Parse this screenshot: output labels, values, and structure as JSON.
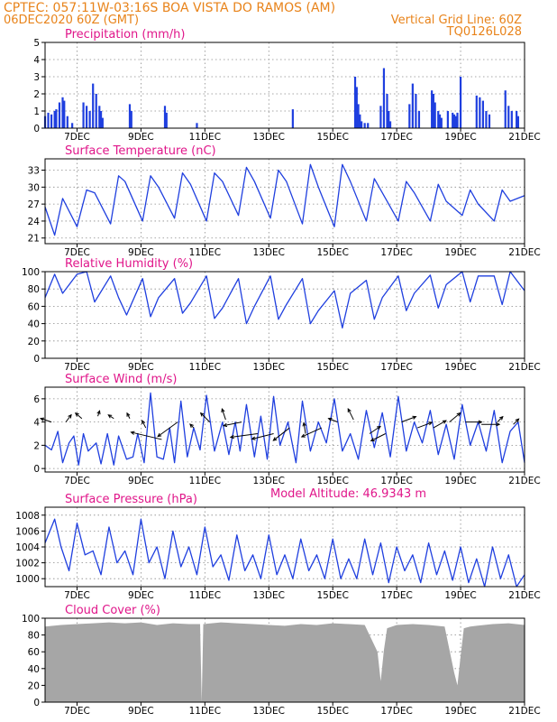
{
  "header": {
    "line1_left": "CPTEC:  057:11W-03:16S  BOA VISTA DO RAMOS (AM)",
    "line2_left": "06DEC2020 60Z (GMT)",
    "line2_right": "Vertical Grid Line: 60Z",
    "line3_right": "TQ0126L028"
  },
  "colors": {
    "header": "#e8831a",
    "titles": "#e0168a",
    "series": "#1f3fdf",
    "cloud": "#a6a6a6",
    "grid": "#8a8a8a"
  },
  "x_labels": [
    "7DEC",
    "9DEC",
    "11DEC",
    "13DEC",
    "15DEC",
    "17DEC",
    "19DEC",
    "21DEC"
  ],
  "altitude_label": "Model Altitude: 46.9343 m",
  "chart_data": [
    {
      "type": "bar",
      "title": "Precipitation (mm/h)",
      "ylim": [
        0,
        5
      ],
      "yticks": [
        "0",
        "1",
        "2",
        "3",
        "4",
        "5"
      ],
      "x_days": [
        6.0,
        6.1,
        6.2,
        6.3,
        6.35,
        6.45,
        6.55,
        6.6,
        6.7,
        6.85,
        7.2,
        7.3,
        7.4,
        7.5,
        7.6,
        7.7,
        7.75,
        7.8,
        8.65,
        8.7,
        9.75,
        9.8,
        10.75,
        13.75,
        15.7,
        15.75,
        15.8,
        15.85,
        15.9,
        16.0,
        16.1,
        16.5,
        16.6,
        16.7,
        16.75,
        16.8,
        17.4,
        17.5,
        17.6,
        17.7,
        18.1,
        18.15,
        18.2,
        18.3,
        18.35,
        18.4,
        18.6,
        18.75,
        18.8,
        18.85,
        18.9,
        19.0,
        19.5,
        19.6,
        19.7,
        19.8,
        19.9,
        20.4,
        20.5,
        20.6,
        20.75,
        20.8
      ],
      "values": [
        0.7,
        0.9,
        0.8,
        1.0,
        1.1,
        1.5,
        1.8,
        1.6,
        0.7,
        0.3,
        1.5,
        1.3,
        1.0,
        2.6,
        2.0,
        1.3,
        1.0,
        0.6,
        1.4,
        1.0,
        1.3,
        0.9,
        0.3,
        1.1,
        3.0,
        2.4,
        1.4,
        0.8,
        0.4,
        0.3,
        0.3,
        1.3,
        3.5,
        2.0,
        1.0,
        0.4,
        1.4,
        2.6,
        2.0,
        1.0,
        2.2,
        2.0,
        1.5,
        1.0,
        0.8,
        0.6,
        1.0,
        0.9,
        0.8,
        0.7,
        0.9,
        3.0,
        1.9,
        1.8,
        1.6,
        1.0,
        0.8,
        2.2,
        1.3,
        1.0,
        1.0,
        0.7
      ]
    },
    {
      "type": "line",
      "title": "Surface Temperature (nC)",
      "ylim": [
        20,
        35
      ],
      "yticks": [
        "21",
        "24",
        "27",
        "30",
        "33"
      ],
      "x_days": [
        6.0,
        6.3,
        6.55,
        7.0,
        7.3,
        7.55,
        8.05,
        8.3,
        8.5,
        9.05,
        9.3,
        9.55,
        10.05,
        10.3,
        10.55,
        11.05,
        11.3,
        11.55,
        12.05,
        12.3,
        12.55,
        13.05,
        13.3,
        13.55,
        14.05,
        14.3,
        14.55,
        15.05,
        15.3,
        15.55,
        16.05,
        16.3,
        16.55,
        17.05,
        17.3,
        17.55,
        18.05,
        18.3,
        18.55,
        19.05,
        19.3,
        19.55,
        20.05,
        20.3,
        20.55,
        21.0
      ],
      "values": [
        26.5,
        21.5,
        28.0,
        23.0,
        29.5,
        29.0,
        23.5,
        32.0,
        31.0,
        24.0,
        32.0,
        30.0,
        24.5,
        32.5,
        30.5,
        24.0,
        32.5,
        31.0,
        25.0,
        33.5,
        31.0,
        24.5,
        33.0,
        31.0,
        23.5,
        34.0,
        30.0,
        23.0,
        34.0,
        31.0,
        24.0,
        31.5,
        29.0,
        24.0,
        31.0,
        29.0,
        24.0,
        30.5,
        27.5,
        25.0,
        29.5,
        27.0,
        24.0,
        29.5,
        27.5,
        28.5
      ]
    },
    {
      "type": "line",
      "title": "Relative Humidity (%)",
      "ylim": [
        0,
        100
      ],
      "yticks": [
        "0",
        "20",
        "40",
        "60",
        "80",
        "100"
      ],
      "x_days": [
        6.0,
        6.3,
        6.55,
        7.0,
        7.3,
        7.55,
        8.05,
        8.3,
        8.55,
        9.05,
        9.3,
        9.55,
        10.05,
        10.3,
        10.55,
        11.05,
        11.3,
        11.55,
        12.05,
        12.3,
        12.55,
        13.05,
        13.3,
        13.55,
        14.05,
        14.3,
        14.55,
        15.05,
        15.3,
        15.55,
        16.05,
        16.3,
        16.55,
        17.05,
        17.3,
        17.55,
        18.05,
        18.3,
        18.55,
        19.05,
        19.3,
        19.55,
        20.05,
        20.3,
        20.55,
        21.0
      ],
      "values": [
        70,
        97,
        75,
        97,
        100,
        65,
        95,
        70,
        50,
        92,
        48,
        70,
        92,
        52,
        64,
        95,
        46,
        58,
        92,
        40,
        60,
        95,
        45,
        62,
        92,
        40,
        55,
        78,
        35,
        75,
        90,
        45,
        70,
        95,
        55,
        75,
        96,
        58,
        85,
        100,
        65,
        95,
        95,
        62,
        100,
        78
      ]
    },
    {
      "type": "line",
      "title": "Surface Wind (m/s)",
      "ylim": [
        -0.3,
        7
      ],
      "yticks": [
        "0",
        "2",
        "4",
        "6"
      ],
      "x_days": [
        6.0,
        6.2,
        6.4,
        6.55,
        6.75,
        6.9,
        7.05,
        7.2,
        7.35,
        7.6,
        7.75,
        7.95,
        8.15,
        8.3,
        8.55,
        8.75,
        8.9,
        9.1,
        9.3,
        9.5,
        9.7,
        9.9,
        10.05,
        10.25,
        10.45,
        10.65,
        10.85,
        11.05,
        11.3,
        11.55,
        11.75,
        11.95,
        12.1,
        12.3,
        12.55,
        12.75,
        12.95,
        13.15,
        13.35,
        13.6,
        13.85,
        14.05,
        14.3,
        14.55,
        14.8,
        15.05,
        15.3,
        15.55,
        15.8,
        16.05,
        16.3,
        16.55,
        16.8,
        17.05,
        17.3,
        17.55,
        17.8,
        18.05,
        18.3,
        18.55,
        18.8,
        19.05,
        19.3,
        19.55,
        19.8,
        20.05,
        20.3,
        20.55,
        20.8,
        21.0
      ],
      "values": [
        2.0,
        1.6,
        3.2,
        0.5,
        2.2,
        2.8,
        0.3,
        3.0,
        1.5,
        2.2,
        0.4,
        3.0,
        0.3,
        2.8,
        0.8,
        1.0,
        3.0,
        0.5,
        6.5,
        1.0,
        0.8,
        3.5,
        0.5,
        5.8,
        1.0,
        3.5,
        1.6,
        6.3,
        1.5,
        4.0,
        1.2,
        4.0,
        1.5,
        5.5,
        1.0,
        4.5,
        0.8,
        6.2,
        2.0,
        4.0,
        0.5,
        5.8,
        1.5,
        4.0,
        2.2,
        6.0,
        1.5,
        3.0,
        0.8,
        5.0,
        1.8,
        4.8,
        1.0,
        6.2,
        1.5,
        4.0,
        2.2,
        5.0,
        1.2,
        3.8,
        0.8,
        5.5,
        2.0,
        4.0,
        1.5,
        5.0,
        0.5,
        3.2,
        4.0,
        0.5
      ],
      "arrows": {
        "x_days": [
          6.2,
          6.65,
          7.15,
          7.65,
          8.15,
          8.65,
          9.15,
          9.65,
          10.15,
          10.65,
          11.15,
          11.65,
          12.15,
          12.65,
          13.15,
          13.65,
          14.15,
          14.65,
          15.15,
          15.65,
          16.15,
          16.65,
          17.15,
          17.65,
          18.15,
          18.65,
          19.15,
          19.65,
          20.15,
          20.65
        ],
        "y": [
          4.0,
          4.0,
          4.3,
          4.5,
          4.3,
          4.3,
          3.5,
          2.5,
          4.0,
          3.5,
          4.0,
          4.2,
          4.0,
          3.0,
          3.0,
          3.5,
          3.0,
          3.5,
          4.0,
          4.2,
          3.0,
          3.0,
          4.0,
          3.5,
          3.5,
          4.0,
          4.0,
          3.8,
          4.0,
          3.8
        ],
        "dx": [
          -12,
          6,
          -7,
          2,
          -6,
          -3,
          -4,
          -34,
          -22,
          -4,
          -10,
          -4,
          -20,
          -30,
          -24,
          -18,
          -2,
          -22,
          -10,
          -6,
          12,
          -16,
          16,
          16,
          14,
          12,
          18,
          20,
          6,
          6
        ],
        "dy": [
          -4,
          -8,
          -6,
          -6,
          -4,
          -6,
          -8,
          -8,
          16,
          -4,
          -10,
          -12,
          4,
          4,
          6,
          14,
          -12,
          10,
          -4,
          -12,
          -8,
          8,
          -6,
          -6,
          -8,
          -10,
          0,
          0,
          -6,
          -6
        ]
      }
    },
    {
      "type": "line",
      "title": "Surface Pressure (hPa)",
      "ylim": [
        999,
        1009
      ],
      "yticks": [
        "1000",
        "1002",
        "1004",
        "1006",
        "1008"
      ],
      "x_days": [
        6.0,
        6.3,
        6.5,
        6.75,
        7.0,
        7.25,
        7.5,
        7.75,
        8.0,
        8.25,
        8.5,
        8.75,
        9.0,
        9.25,
        9.5,
        9.75,
        10.0,
        10.25,
        10.5,
        10.75,
        11.0,
        11.25,
        11.5,
        11.75,
        12.0,
        12.25,
        12.5,
        12.75,
        13.0,
        13.25,
        13.5,
        13.75,
        14.0,
        14.25,
        14.5,
        14.75,
        15.0,
        15.25,
        15.5,
        15.75,
        16.0,
        16.25,
        16.5,
        16.75,
        17.0,
        17.25,
        17.5,
        17.75,
        18.0,
        18.25,
        18.5,
        18.75,
        19.0,
        19.25,
        19.5,
        19.75,
        20.0,
        20.25,
        20.5,
        20.75,
        21.0
      ],
      "values": [
        1004.5,
        1007.5,
        1004.0,
        1001.0,
        1007.0,
        1003.0,
        1003.5,
        1000.5,
        1006.5,
        1002.0,
        1003.5,
        1000.5,
        1007.5,
        1002.0,
        1004.0,
        1000.0,
        1006.0,
        1001.5,
        1004.0,
        1000.5,
        1006.5,
        1001.5,
        1003.0,
        999.8,
        1005.5,
        1001.0,
        1003.0,
        1000.0,
        1005.5,
        1000.5,
        1003.0,
        1000.0,
        1005.0,
        1001.0,
        1003.0,
        1000.0,
        1005.0,
        1000.0,
        1002.5,
        1000.0,
        1005.0,
        1000.5,
        1004.5,
        999.5,
        1004.0,
        1001.0,
        1003.0,
        999.5,
        1004.5,
        1000.5,
        1003.5,
        999.8,
        1004.0,
        999.5,
        1002.5,
        999.0,
        1004.0,
        1000.0,
        1003.0,
        999.0,
        1000.5
      ]
    },
    {
      "type": "area",
      "title": "Cloud Cover (%)",
      "ylim": [
        0,
        100
      ],
      "yticks": [
        "0",
        "20",
        "40",
        "60",
        "80",
        "100"
      ],
      "x_days": [
        6.0,
        6.5,
        7.0,
        7.5,
        8.0,
        8.5,
        9.0,
        9.5,
        10.0,
        10.5,
        10.85,
        10.9,
        10.95,
        11.5,
        12.0,
        12.5,
        13.0,
        13.5,
        14.0,
        14.5,
        15.0,
        15.5,
        16.0,
        16.4,
        16.5,
        16.6,
        16.7,
        17.0,
        17.5,
        18.0,
        18.5,
        18.8,
        18.9,
        19.0,
        19.1,
        19.3,
        19.5,
        20.0,
        20.5,
        21.0
      ],
      "values": [
        90,
        92,
        93,
        94,
        95,
        94,
        95,
        92,
        94,
        93,
        93,
        0,
        93,
        95,
        94,
        93,
        92,
        91,
        93,
        92,
        94,
        93,
        92,
        60,
        25,
        62,
        88,
        92,
        93,
        92,
        90,
        35,
        20,
        55,
        88,
        90,
        91,
        93,
        94,
        92
      ]
    }
  ]
}
